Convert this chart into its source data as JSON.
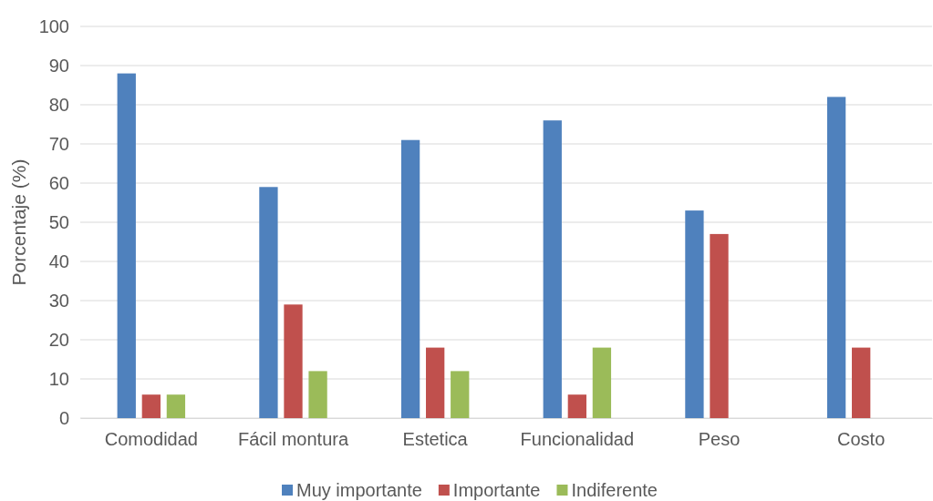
{
  "chart_data": {
    "type": "bar",
    "ylabel": "Porcentaje (%)",
    "categories": [
      "Comodidad",
      "Fácil montura",
      "Estetica",
      "Funcionalidad",
      "Peso",
      "Costo"
    ],
    "series": [
      {
        "name": "Muy importante",
        "color": "#4f81bd",
        "values": [
          88,
          59,
          71,
          76,
          53,
          82
        ]
      },
      {
        "name": "Importante",
        "color": "#c0504d",
        "values": [
          6,
          29,
          18,
          6,
          47,
          18
        ]
      },
      {
        "name": "Indiferente",
        "color": "#9bbb59",
        "values": [
          6,
          12,
          12,
          18,
          null,
          null
        ]
      }
    ],
    "ylim": [
      0,
      100
    ],
    "yticks": [
      0,
      10,
      20,
      30,
      40,
      50,
      60,
      70,
      80,
      90,
      100
    ],
    "grid": "y",
    "legend": "bottom"
  }
}
